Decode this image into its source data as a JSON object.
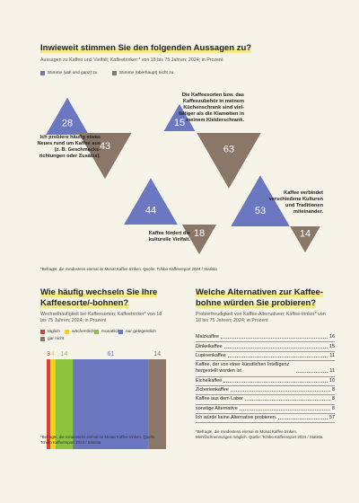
{
  "chart_data": [
    {
      "type": "triangle",
      "title": "Inwieweit stimmen Sie den folgenden Aussagen zu?",
      "subtitle": "Aussagen zu Kaffee und Vielfalt; Kaffeetrinker:* von 18 bis 75 Jahren; 2024; in Prozent",
      "categories": [
        "Ich probiere häufig etwas Neues rund um Kaffee aus (z. B. Geschmacks-richtungen oder Zusätze).",
        "Die Kaffeesorten bzw. das Kaffeezubehör in meinem Küchenschrank sind viel-fältiger als die Klamotten in meinem Kleiderschrank.",
        "Kaffee fördert die kulturelle Vielfalt.",
        "Kaffee verbindet verschiedene Kulturen und Traditionen miteinander."
      ],
      "series": [
        {
          "name": "Stimme (voll und ganz) zu",
          "color": "#6b77c0",
          "values": [
            28,
            15,
            44,
            53
          ]
        },
        {
          "name": "Stimme (überhaupt) nicht zu",
          "color": "#8b7768",
          "values": [
            43,
            63,
            18,
            14
          ]
        }
      ],
      "source": "*Befragte, die mindestens einmal im Monat Kaffee trinken. Quelle: Tchibo Kaffeereport 2024 / Statista"
    },
    {
      "type": "stackedbar",
      "title": "Wie häufig wechseln Sie Ihre Kaffeesorte/-bohnen?",
      "subtitle": "Wechselhäufigkeit bei Kaffeesorten; Kaffeetrinker* von 18 bis 75 Jahren; 2024; in Prozent",
      "categories": [
        "täglich",
        "wöchentlich",
        "monatlich",
        "nur gelegentlich",
        "gar nicht"
      ],
      "values": [
        3,
        4,
        14,
        61,
        14
      ],
      "colors": [
        "#e03c3c",
        "#f4d11e",
        "#8cc43f",
        "#6b77c0",
        "#8b7768"
      ],
      "source": "*Befragte, die mindestens einmal im Monat Kaffee trinken. Quelle: Tchibo Kaffeereport 2024 / Statista"
    },
    {
      "type": "table",
      "title": "Welche Alternativen zur Kaffee-bohne würden Sie probieren?",
      "subtitle": "Probierfreudigkeit von Kaffee-Alternativen; Kaffee-trinker* von 18 bis 75 Jahren; 2024; in Prozent",
      "categories": [
        "Malzkaffee",
        "Dinkelkaffee",
        "Lupinenkaffee",
        "Kaffee, der von einer künstlichen Intelligenz hergestellt worden ist",
        "Eichelkaffee",
        "Zichorienkaffee",
        "Kaffee aus dem Labor",
        "sonstige Alternative",
        "Ich würde keine Alternative probieren."
      ],
      "values": [
        16,
        15,
        11,
        11,
        10,
        8,
        8,
        8,
        57
      ],
      "source": "*Befragte, die mindestens einmal im Monat Kaffee trinken. Mehrfachnennungen möglich. Quelle: Tchibo Kaffeereport 2024 / Statista"
    }
  ]
}
